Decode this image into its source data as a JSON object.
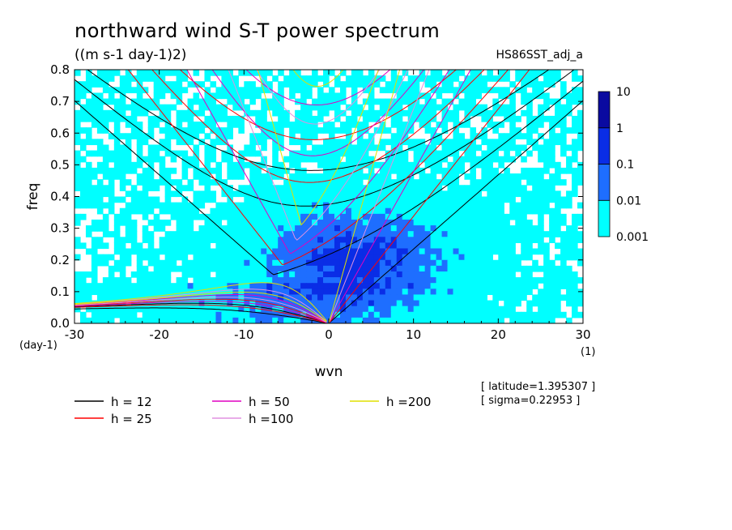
{
  "chart_data": {
    "type": "heatmap",
    "title": "northward wind S-T power spectrum",
    "units": "((m s-1 day-1)2)",
    "run_label": "HS86SST_adj_a",
    "xlabel": "wvn",
    "ylabel": "freq",
    "x_unit": "(1)",
    "y_unit": "(day-1)",
    "xlim": [
      -30,
      30
    ],
    "ylim": [
      0,
      0.8
    ],
    "x_ticks": [
      -30,
      -20,
      -10,
      0,
      10,
      20,
      30
    ],
    "x_tick_labels": [
      "-30",
      "-20",
      "-10",
      "0",
      "10",
      "20",
      "30"
    ],
    "y_ticks": [
      0,
      0.1,
      0.2,
      0.3,
      0.4,
      0.5,
      0.6,
      0.7,
      0.8
    ],
    "y_tick_labels": [
      "0.0",
      "0.1",
      "0.2",
      "0.3",
      "0.4",
      "0.5",
      "0.6",
      "0.7",
      "0.8"
    ],
    "color_levels": [
      "0.001",
      "0.01",
      "0.1",
      "1",
      "10"
    ],
    "color_bands": [
      "#00ffff",
      "#1e6eff",
      "#0a2de6",
      "#0a0aa0"
    ],
    "dispersion_curves": [
      {
        "label": "h = 12",
        "h": 12,
        "color": "#000000"
      },
      {
        "label": "h = 25",
        "h": 25,
        "color": "#ff0000"
      },
      {
        "label": "h = 50",
        "h": 50,
        "color": "#e000c0"
      },
      {
        "label": "h =100",
        "h": 100,
        "color": "#e090e0"
      },
      {
        "label": "h =200",
        "h": 200,
        "color": "#e0e000"
      }
    ],
    "annotations": {
      "latitude": "[ latitude=1.395307 ]",
      "sigma": "[ sigma=0.22953 ]"
    }
  }
}
